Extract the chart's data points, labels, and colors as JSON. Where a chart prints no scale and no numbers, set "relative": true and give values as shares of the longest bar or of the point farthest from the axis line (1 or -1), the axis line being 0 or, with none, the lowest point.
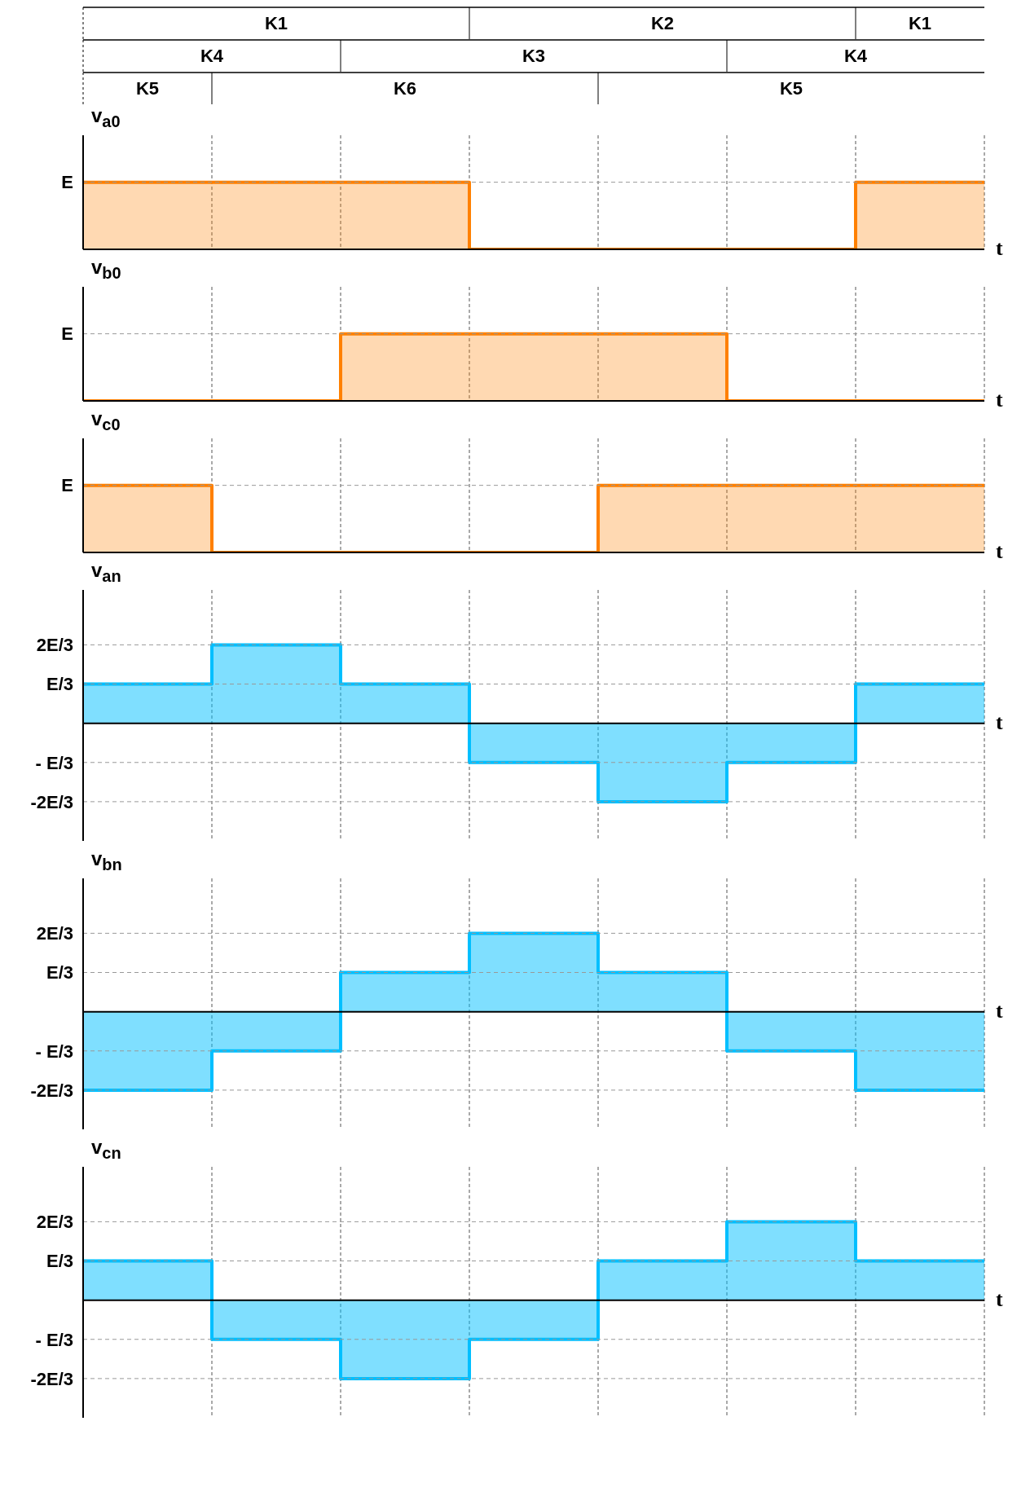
{
  "chart_data": [
    {
      "type": "step",
      "relative": true,
      "ylabel": "v$_{a0}$",
      "xlabel": "t",
      "annotations": [
        "K1",
        "K2",
        "K1"
      ],
      "categories": [
        null,
        null,
        null,
        null,
        null,
        null,
        null,
        null
      ],
      "values": [
        1,
        1,
        1,
        0,
        0,
        0,
        1,
        1
      ],
      "color": "#ff8000",
      "ref_lines": [
        {
          "axis": "y",
          "value": 1,
          "label": "E",
          "line_style": "dashed",
          "color": "#999999"
        }
      ],
      "grid": "x"
    },
    {
      "type": "step",
      "relative": true,
      "ylabel": "v$_{b0}$",
      "xlabel": "t",
      "annotations": [
        "K4",
        "K3",
        "K4"
      ],
      "categories": [
        null,
        null,
        null,
        null,
        null,
        null,
        null,
        null
      ],
      "values": [
        0,
        0,
        1,
        1,
        1,
        0,
        0,
        0
      ],
      "color": "#ff8000",
      "ref_lines": [
        {
          "axis": "y",
          "value": 1,
          "label": "E",
          "line_style": "dashed",
          "color": "#999999"
        }
      ],
      "grid": "x"
    },
    {
      "type": "step",
      "relative": true,
      "ylabel": "v$_{c0}$",
      "xlabel": "t",
      "annotations": [
        "K5",
        "K6",
        "K5"
      ],
      "categories": [
        null,
        null,
        null,
        null,
        null,
        null,
        null,
        null
      ],
      "values": [
        1,
        0,
        0,
        0,
        1,
        1,
        1,
        1
      ],
      "color": "#ff8000",
      "ref_lines": [
        {
          "axis": "y",
          "value": 1,
          "label": "E",
          "line_style": "dashed",
          "color": "#999999"
        }
      ],
      "grid": "x"
    },
    {
      "type": "step",
      "relative": true,
      "ylabel": "v$_{an}$",
      "xlabel": "t",
      "categories": [
        null,
        null,
        null,
        null,
        null,
        null,
        null,
        null
      ],
      "values": [
        0.5,
        1,
        0.5,
        -0.5,
        -1,
        -0.5,
        0.5,
        0.5
      ],
      "color": "#00bfff",
      "ref_lines": [
        {
          "axis": "y",
          "value": 1,
          "label": "2E/3",
          "line_style": "dashed",
          "color": "#999999"
        },
        {
          "axis": "y",
          "value": 0.5,
          "label": "E/3",
          "line_style": "dashed",
          "color": "#999999"
        },
        {
          "axis": "y",
          "value": -0.5,
          "label": "- E/3",
          "line_style": "dashed",
          "color": "#999999"
        },
        {
          "axis": "y",
          "value": -1,
          "label": "-2E/3",
          "line_style": "dashed",
          "color": "#999999"
        }
      ],
      "grid": "x"
    },
    {
      "type": "step",
      "relative": true,
      "ylabel": "v$_{bn}$",
      "xlabel": "t",
      "categories": [
        null,
        null,
        null,
        null,
        null,
        null,
        null,
        null
      ],
      "values": [
        -1,
        -0.5,
        0.5,
        1,
        0.5,
        -0.5,
        -1,
        -1
      ],
      "color": "#00bfff",
      "ref_lines": [
        {
          "axis": "y",
          "value": 1,
          "label": "2E/3",
          "line_style": "dashed",
          "color": "#999999"
        },
        {
          "axis": "y",
          "value": 0.5,
          "label": "E/3",
          "line_style": "dashed",
          "color": "#999999"
        },
        {
          "axis": "y",
          "value": -0.5,
          "label": "- E/3",
          "line_style": "dashed",
          "color": "#999999"
        },
        {
          "axis": "y",
          "value": -1,
          "label": "-2E/3",
          "line_style": "dashed",
          "color": "#999999"
        }
      ],
      "grid": "x"
    },
    {
      "type": "step",
      "relative": true,
      "ylabel": "v$_{cn}$",
      "xlabel": "t",
      "categories": [
        null,
        null,
        null,
        null,
        null,
        null,
        null,
        null
      ],
      "values": [
        0.5,
        -0.5,
        -1,
        -0.5,
        0.5,
        1,
        0.5,
        0.5
      ],
      "color": "#00bfff",
      "ref_lines": [
        {
          "axis": "y",
          "value": 1,
          "label": "2E/3",
          "line_style": "dashed",
          "color": "#999999"
        },
        {
          "axis": "y",
          "value": 0.5,
          "label": "E/3",
          "line_style": "dashed",
          "color": "#999999"
        },
        {
          "axis": "y",
          "value": -0.5,
          "label": "- E/3",
          "line_style": "dashed",
          "color": "#999999"
        },
        {
          "axis": "y",
          "value": -1,
          "label": "-2E/3",
          "line_style": "dashed",
          "color": "#999999"
        }
      ],
      "grid": "x"
    }
  ]
}
